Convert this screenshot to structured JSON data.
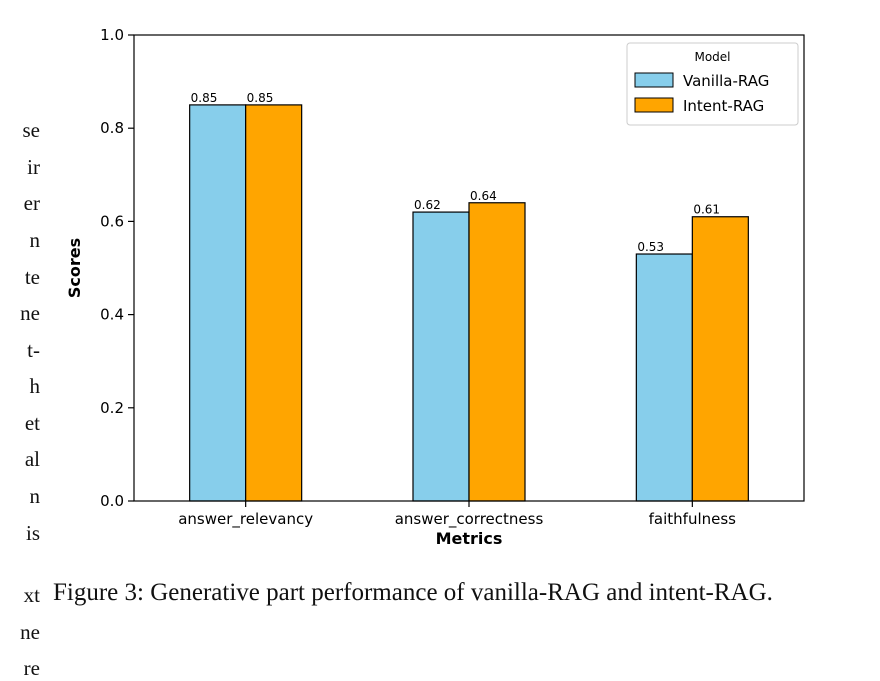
{
  "side_fragments": [
    "se",
    "ir",
    "er",
    "n",
    "te",
    "ne",
    "t-",
    "h",
    "et",
    "al",
    "n",
    "is",
    "xt",
    "ne",
    "re"
  ],
  "caption": "Figure 3: Generative part performance of vanilla-RAG and intent-RAG.",
  "colors": {
    "vanilla": "#87ceeb",
    "intent": "#ffa500",
    "edge": "#000000"
  },
  "chart_data": {
    "type": "bar",
    "categories": [
      "answer_relevancy",
      "answer_correctness",
      "faithfulness"
    ],
    "series": [
      {
        "name": "Vanilla-RAG",
        "values": [
          0.85,
          0.62,
          0.53
        ],
        "labels": [
          "0.85",
          "0.62",
          "0.53"
        ]
      },
      {
        "name": "Intent-RAG",
        "values": [
          0.85,
          0.64,
          0.61
        ],
        "labels": [
          "0.85",
          "0.64",
          "0.61"
        ]
      }
    ],
    "xlabel": "Metrics",
    "ylabel": "Scores",
    "ylim": [
      0,
      1.0
    ],
    "yticks": [
      0.0,
      0.2,
      0.4,
      0.6,
      0.8,
      1.0
    ],
    "ytick_labels": [
      "0.0",
      "0.2",
      "0.4",
      "0.6",
      "0.8",
      "1.0"
    ],
    "legend_title": "Model",
    "legend_position": "top-right",
    "grid": false
  }
}
